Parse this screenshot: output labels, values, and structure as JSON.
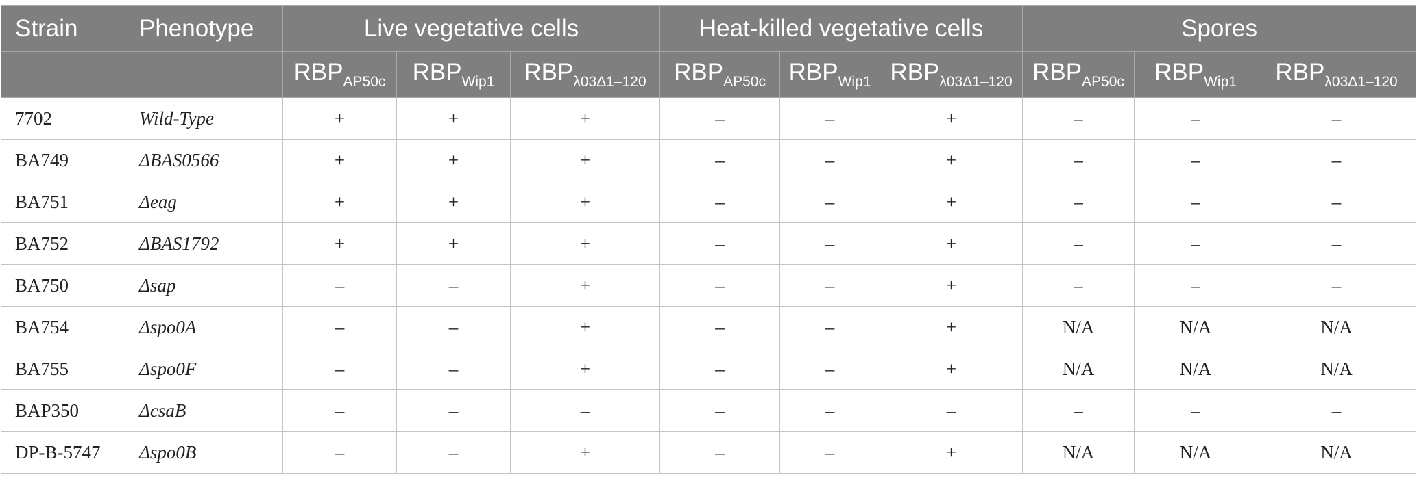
{
  "header": {
    "strain": "Strain",
    "phenotype": "Phenotype",
    "groups": [
      "Live vegetative cells",
      "Heat-killed vegetative cells",
      "Spores"
    ],
    "rbp_base": "RBP",
    "rbp_subs": [
      "AP50c",
      "Wip1",
      "λ03Δ1–120",
      "AP50c",
      "Wip1",
      "λ03Δ1–120",
      "AP50c",
      "Wip1",
      "λ03Δ1–120"
    ]
  },
  "rows": [
    {
      "strain": "7702",
      "phenotype": "Wild-Type",
      "values": [
        "+",
        "+",
        "+",
        "–",
        "–",
        "+",
        "–",
        "–",
        "–"
      ]
    },
    {
      "strain": "BA749",
      "phenotype": "ΔBAS0566",
      "values": [
        "+",
        "+",
        "+",
        "–",
        "–",
        "+",
        "–",
        "–",
        "–"
      ]
    },
    {
      "strain": "BA751",
      "phenotype": "Δeag",
      "values": [
        "+",
        "+",
        "+",
        "–",
        "–",
        "+",
        "–",
        "–",
        "–"
      ]
    },
    {
      "strain": "BA752",
      "phenotype": "ΔBAS1792",
      "values": [
        "+",
        "+",
        "+",
        "–",
        "–",
        "+",
        "–",
        "–",
        "–"
      ]
    },
    {
      "strain": "BA750",
      "phenotype": "Δsap",
      "values": [
        "–",
        "–",
        "+",
        "–",
        "–",
        "+",
        "–",
        "–",
        "–"
      ]
    },
    {
      "strain": "BA754",
      "phenotype": "Δspo0A",
      "values": [
        "–",
        "–",
        "+",
        "–",
        "–",
        "+",
        "N/A",
        "N/A",
        "N/A"
      ]
    },
    {
      "strain": "BA755",
      "phenotype": "Δspo0F",
      "values": [
        "–",
        "–",
        "+",
        "–",
        "–",
        "+",
        "N/A",
        "N/A",
        "N/A"
      ]
    },
    {
      "strain": "BAP350",
      "phenotype": "ΔcsaB",
      "values": [
        "–",
        "–",
        "–",
        "–",
        "–",
        "–",
        "–",
        "–",
        "–"
      ]
    },
    {
      "strain": "DP-B-5747",
      "phenotype": "Δspo0B",
      "values": [
        "–",
        "–",
        "+",
        "–",
        "–",
        "+",
        "N/A",
        "N/A",
        "N/A"
      ]
    }
  ],
  "colors": {
    "header_bg": "#7f7f7f",
    "header_text": "#ffffff",
    "grid": "#c4c4c4",
    "body_text": "#222222"
  }
}
